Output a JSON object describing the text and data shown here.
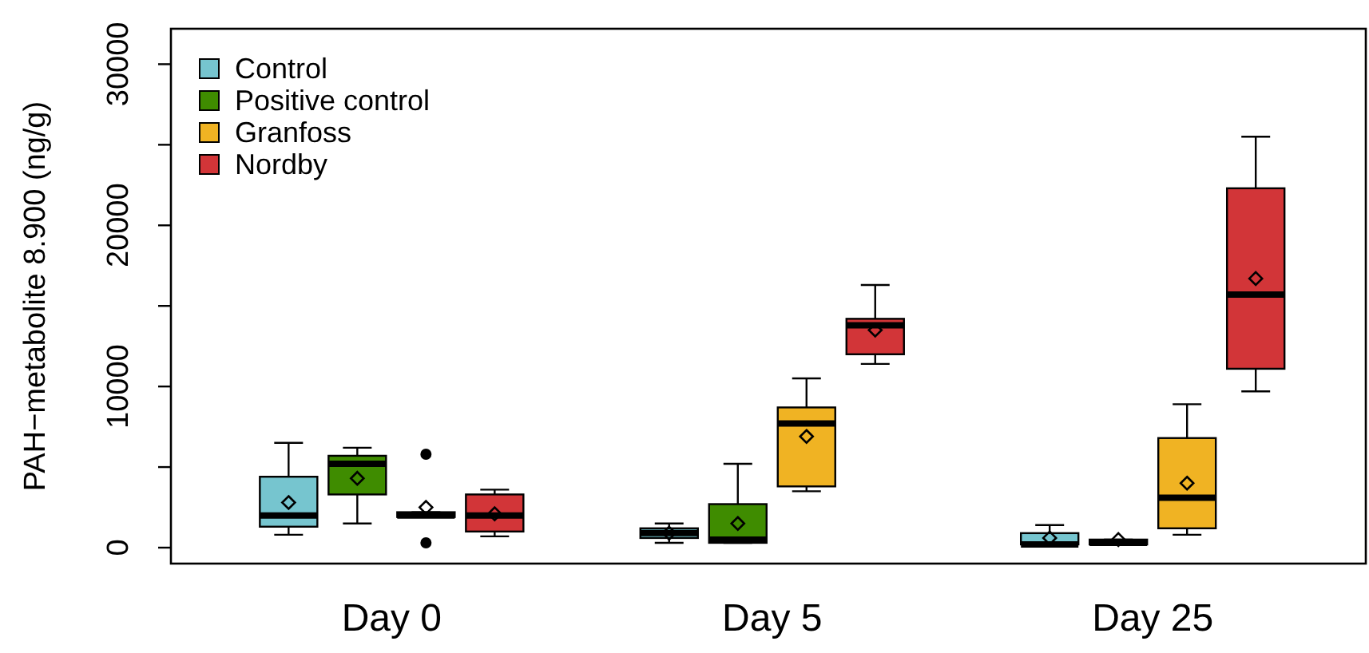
{
  "chart_data": {
    "type": "box",
    "ylabel": "PAH−metabolite 8.900 (ng/g)",
    "categories": [
      "Day 0",
      "Day 5",
      "Day 25"
    ],
    "ylim": [
      -990,
      32200
    ],
    "yticks": [
      0,
      {
        "value": 5000,
        "label": null
      },
      10000,
      {
        "value": 15000,
        "label": null
      },
      20000,
      {
        "value": 25000,
        "label": null
      },
      30000
    ],
    "legend": "top left",
    "marker": "diamond",
    "grid": false,
    "series": [
      {
        "name": "Control",
        "color": "#76c5cf",
        "boxes": [
          {
            "low": 800,
            "q1": 1300,
            "median": 2000,
            "q3": 4400,
            "high": 6500,
            "mean": 2800
          },
          {
            "low": 300,
            "q1": 600,
            "median": 900,
            "q3": 1200,
            "high": 1500,
            "mean": 900
          },
          {
            "low": 200,
            "q1": 200,
            "median": 200,
            "q3": 900,
            "high": 1400,
            "mean": 600
          }
        ]
      },
      {
        "name": "Positive control",
        "color": "#3f8c00",
        "boxes": [
          {
            "low": 1500,
            "q1": 3300,
            "median": 5200,
            "q3": 5700,
            "high": 6200,
            "mean": 4300
          },
          {
            "low": 300,
            "q1": 300,
            "median": 500,
            "q3": 2700,
            "high": 5200,
            "mean": 1500
          },
          {
            "low": 200,
            "q1": 200,
            "median": 300,
            "q3": 500,
            "high": 500,
            "mean": 500
          }
        ]
      },
      {
        "name": "Granfoss",
        "color": "#f0b323",
        "boxes": [
          {
            "low": 1900,
            "q1": 1900,
            "median": 2000,
            "q3": 2200,
            "high": 2200,
            "mean": 2500,
            "outliers": [
              5800,
              300
            ]
          },
          {
            "low": 3500,
            "q1": 3800,
            "median": 7700,
            "q3": 8700,
            "high": 10500,
            "mean": 6900
          },
          {
            "low": 800,
            "q1": 1200,
            "median": 3100,
            "q3": 6800,
            "high": 8900,
            "mean": 4000
          }
        ]
      },
      {
        "name": "Nordby",
        "color": "#d23538",
        "boxes": [
          {
            "low": 700,
            "q1": 1000,
            "median": 2000,
            "q3": 3300,
            "high": 3600,
            "mean": 2100
          },
          {
            "low": 11400,
            "q1": 12000,
            "median": 13800,
            "q3": 14200,
            "high": 16300,
            "mean": 13500
          },
          {
            "low": 9700,
            "q1": 11100,
            "median": 15700,
            "q3": 22300,
            "high": 25500,
            "mean": 16700
          }
        ]
      }
    ]
  }
}
